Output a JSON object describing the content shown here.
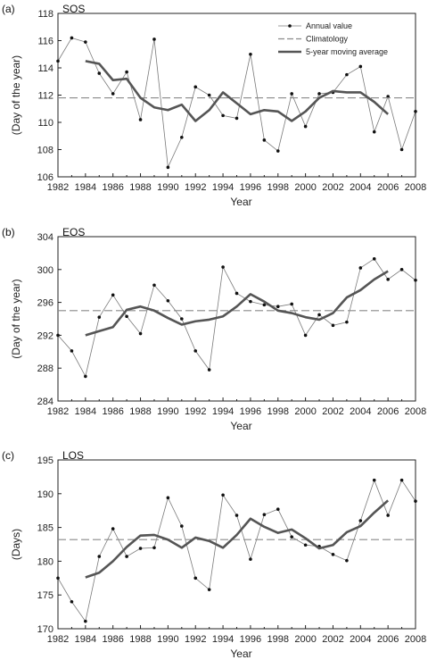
{
  "chart_data": [
    {
      "type": "line",
      "panel": "(a)",
      "title": "SOS",
      "xlabel": "Year",
      "ylabel": "(Day of the year)",
      "xlim": [
        1982,
        2008
      ],
      "ylim": [
        106,
        118
      ],
      "xticks": [
        1982,
        1984,
        1986,
        1988,
        1990,
        1992,
        1994,
        1996,
        1998,
        2000,
        2002,
        2004,
        2006,
        2008
      ],
      "yticks": [
        106,
        108,
        110,
        112,
        114,
        116,
        118
      ],
      "legend": "top-right",
      "series": [
        {
          "name": "Annual value",
          "style": "thin-line-dots",
          "x": [
            1982,
            1983,
            1984,
            1985,
            1986,
            1987,
            1988,
            1989,
            1990,
            1991,
            1992,
            1993,
            1994,
            1995,
            1996,
            1997,
            1998,
            1999,
            2000,
            2001,
            2002,
            2003,
            2004,
            2005,
            2006,
            2007,
            2008
          ],
          "values": [
            114.5,
            116.2,
            115.9,
            113.6,
            112.1,
            113.7,
            110.2,
            116.1,
            106.7,
            108.9,
            112.6,
            112.0,
            110.5,
            110.3,
            115.0,
            108.7,
            107.9,
            112.1,
            109.7,
            112.1,
            112.2,
            113.5,
            114.1,
            109.3,
            111.9,
            108.0,
            110.8
          ]
        },
        {
          "name": "Climatology",
          "style": "dashed",
          "x": [
            1982,
            2008
          ],
          "values": [
            111.8,
            111.8
          ]
        },
        {
          "name": "5-year moving average",
          "style": "thick-line",
          "x": [
            1984,
            1985,
            1986,
            1987,
            1988,
            1989,
            1990,
            1991,
            1992,
            1993,
            1994,
            1995,
            1996,
            1997,
            1998,
            1999,
            2000,
            2001,
            2002,
            2003,
            2004,
            2005,
            2006
          ],
          "values": [
            114.5,
            114.3,
            113.1,
            113.2,
            111.8,
            111.1,
            110.9,
            111.3,
            110.1,
            110.9,
            112.2,
            111.4,
            110.6,
            110.9,
            110.8,
            110.1,
            110.8,
            111.8,
            112.3,
            112.2,
            112.2,
            111.5,
            110.6
          ]
        }
      ]
    },
    {
      "type": "line",
      "panel": "(b)",
      "title": "EOS",
      "xlabel": "Year",
      "ylabel": "(Day of the year)",
      "xlim": [
        1982,
        2008
      ],
      "ylim": [
        284,
        304
      ],
      "xticks": [
        1982,
        1984,
        1986,
        1988,
        1990,
        1992,
        1994,
        1996,
        1998,
        2000,
        2002,
        2004,
        2006,
        2008
      ],
      "yticks": [
        284,
        288,
        292,
        296,
        300,
        304
      ],
      "series": [
        {
          "name": "Annual value",
          "style": "thin-line-dots",
          "x": [
            1982,
            1983,
            1984,
            1985,
            1986,
            1987,
            1988,
            1989,
            1990,
            1991,
            1992,
            1993,
            1994,
            1995,
            1996,
            1997,
            1998,
            1999,
            2000,
            2001,
            2002,
            2003,
            2004,
            2005,
            2006,
            2007,
            2008
          ],
          "values": [
            292.0,
            290.1,
            287.0,
            294.2,
            296.9,
            294.3,
            292.2,
            298.1,
            296.2,
            294.0,
            290.1,
            287.8,
            300.3,
            297.1,
            296.1,
            295.7,
            295.5,
            295.8,
            292.0,
            294.5,
            293.2,
            293.6,
            300.2,
            301.3,
            298.8,
            300.0,
            298.7
          ]
        },
        {
          "name": "Climatology",
          "style": "dashed",
          "x": [
            1982,
            2008
          ],
          "values": [
            295.0,
            295.0
          ]
        },
        {
          "name": "5-year moving average",
          "style": "thick-line",
          "x": [
            1984,
            1985,
            1986,
            1987,
            1988,
            1989,
            1990,
            1991,
            1992,
            1993,
            1994,
            1995,
            1996,
            1997,
            1998,
            1999,
            2000,
            2001,
            2002,
            2003,
            2004,
            2005,
            2006
          ],
          "values": [
            292.0,
            292.5,
            293.0,
            295.1,
            295.5,
            295.0,
            294.1,
            293.3,
            293.7,
            293.9,
            294.3,
            295.5,
            297.0,
            296.1,
            295.0,
            294.7,
            294.2,
            293.9,
            294.7,
            296.6,
            297.5,
            298.8,
            299.8
          ]
        }
      ]
    },
    {
      "type": "line",
      "panel": "(c)",
      "title": "LOS",
      "xlabel": "Year",
      "ylabel": "(Days)",
      "xlim": [
        1982,
        2008
      ],
      "ylim": [
        170,
        195
      ],
      "xticks": [
        1982,
        1984,
        1986,
        1988,
        1990,
        1992,
        1994,
        1996,
        1998,
        2000,
        2002,
        2004,
        2006,
        2008
      ],
      "yticks": [
        170,
        175,
        180,
        185,
        190,
        195
      ],
      "series": [
        {
          "name": "Annual value",
          "style": "thin-line-dots",
          "x": [
            1982,
            1983,
            1984,
            1985,
            1986,
            1987,
            1988,
            1989,
            1990,
            1991,
            1992,
            1993,
            1994,
            1995,
            1996,
            1997,
            1998,
            1999,
            2000,
            2001,
            2002,
            2003,
            2004,
            2005,
            2006,
            2007,
            2008
          ],
          "values": [
            177.5,
            174.0,
            171.1,
            180.7,
            184.8,
            180.7,
            181.9,
            182.0,
            189.4,
            185.2,
            177.5,
            175.8,
            189.8,
            186.8,
            180.3,
            186.9,
            187.7,
            183.6,
            182.4,
            182.2,
            181.0,
            180.1,
            186.0,
            192.0,
            186.8,
            192.0,
            188.9
          ]
        },
        {
          "name": "Climatology",
          "style": "dashed",
          "x": [
            1982,
            2008
          ],
          "values": [
            183.2,
            183.2
          ]
        },
        {
          "name": "5-year moving average",
          "style": "thick-line",
          "x": [
            1984,
            1985,
            1986,
            1987,
            1988,
            1989,
            1990,
            1991,
            1992,
            1993,
            1994,
            1995,
            1996,
            1997,
            1998,
            1999,
            2000,
            2001,
            2002,
            2003,
            2004,
            2005,
            2006
          ],
          "values": [
            177.6,
            178.3,
            180.0,
            182.1,
            183.8,
            183.9,
            183.2,
            182.0,
            183.5,
            183.0,
            182.0,
            183.9,
            186.3,
            185.1,
            184.2,
            184.7,
            183.4,
            181.9,
            182.4,
            184.3,
            185.2,
            187.2,
            189.0
          ]
        }
      ]
    }
  ]
}
